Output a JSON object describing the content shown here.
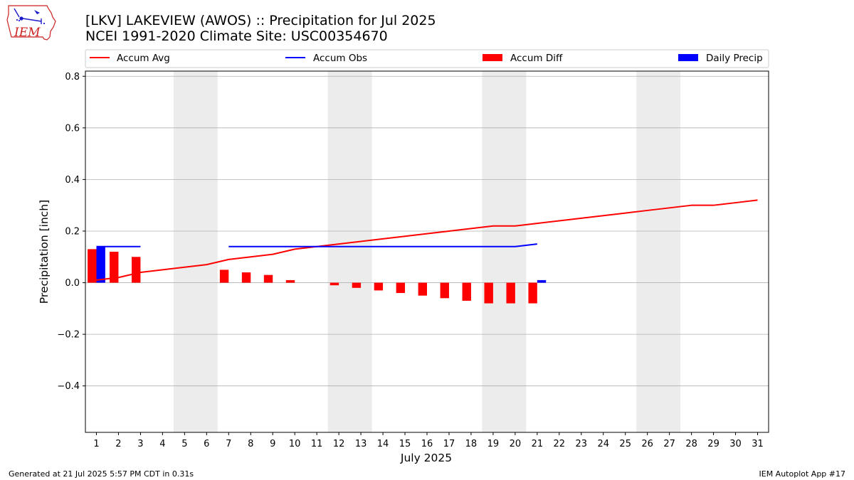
{
  "logo": {
    "text": "IEM"
  },
  "header": {
    "title_line1": "[LKV] LAKEVIEW (AWOS) :: Precipitation for Jul 2025",
    "title_line2": "NCEI 1991-2020 Climate Site: USC00354670"
  },
  "footer": {
    "left": "Generated at 21 Jul 2025 5:57 PM CDT in 0.31s",
    "right": "IEM Autoplot App #17"
  },
  "colors": {
    "avg": "#ff0000",
    "obs": "#0000ff",
    "diff": "#ff0000",
    "daily": "#0000ff",
    "weekend_band": "#ececec",
    "grid": "#b0b0b0"
  },
  "chart_data": {
    "type": "bar",
    "xlabel": "July 2025",
    "ylabel": "Precipitation [inch]",
    "xlim": [
      0.5,
      31.5
    ],
    "ylim": [
      -0.58,
      0.82
    ],
    "yticks": [
      -0.4,
      -0.2,
      0.0,
      0.2,
      0.4,
      0.6,
      0.8
    ],
    "ytick_labels": [
      "−0.4",
      "−0.2",
      "0.0",
      "0.2",
      "0.4",
      "0.6",
      "0.8"
    ],
    "days": [
      1,
      2,
      3,
      4,
      5,
      6,
      7,
      8,
      9,
      10,
      11,
      12,
      13,
      14,
      15,
      16,
      17,
      18,
      19,
      20,
      21,
      22,
      23,
      24,
      25,
      26,
      27,
      28,
      29,
      30,
      31
    ],
    "grid": true,
    "legend_position": "top",
    "weekend_bands": [
      [
        4.5,
        6.5
      ],
      [
        11.5,
        13.5
      ],
      [
        18.5,
        20.5
      ],
      [
        25.5,
        27.5
      ]
    ],
    "series": [
      {
        "name": "Accum Avg",
        "kind": "line",
        "x": [
          1,
          2,
          3,
          4,
          5,
          6,
          7,
          8,
          9,
          10,
          11,
          12,
          13,
          14,
          15,
          16,
          17,
          18,
          19,
          20,
          21,
          22,
          23,
          24,
          25,
          26,
          27,
          28,
          29,
          30,
          31
        ],
        "values": [
          0.01,
          0.02,
          0.04,
          0.05,
          0.06,
          0.07,
          0.09,
          0.1,
          0.11,
          0.13,
          0.14,
          0.15,
          0.16,
          0.17,
          0.18,
          0.19,
          0.2,
          0.21,
          0.22,
          0.22,
          0.23,
          0.24,
          0.25,
          0.26,
          0.27,
          0.28,
          0.29,
          0.3,
          0.3,
          0.31,
          0.32
        ]
      },
      {
        "name": "Accum Obs",
        "kind": "line",
        "segments": [
          {
            "x": [
              1,
              2,
              3
            ],
            "values": [
              0.14,
              0.14,
              0.14
            ]
          },
          {
            "x": [
              7,
              8,
              9,
              10,
              11,
              12,
              13,
              14,
              15,
              16,
              17,
              18,
              19,
              20,
              21
            ],
            "values": [
              0.14,
              0.14,
              0.14,
              0.14,
              0.14,
              0.14,
              0.14,
              0.14,
              0.14,
              0.14,
              0.14,
              0.14,
              0.14,
              0.14,
              0.15
            ]
          }
        ]
      },
      {
        "name": "Accum Diff",
        "kind": "bar",
        "x": [
          1,
          2,
          3,
          7,
          8,
          9,
          10,
          12,
          13,
          14,
          15,
          16,
          17,
          18,
          19,
          20,
          21
        ],
        "values": [
          0.13,
          0.12,
          0.1,
          0.05,
          0.04,
          0.03,
          0.01,
          -0.01,
          -0.02,
          -0.03,
          -0.04,
          -0.05,
          -0.06,
          -0.07,
          -0.08,
          -0.08,
          -0.08
        ]
      },
      {
        "name": "Daily Precip",
        "kind": "bar",
        "x": [
          1,
          21
        ],
        "values": [
          0.14,
          0.01
        ]
      }
    ]
  }
}
